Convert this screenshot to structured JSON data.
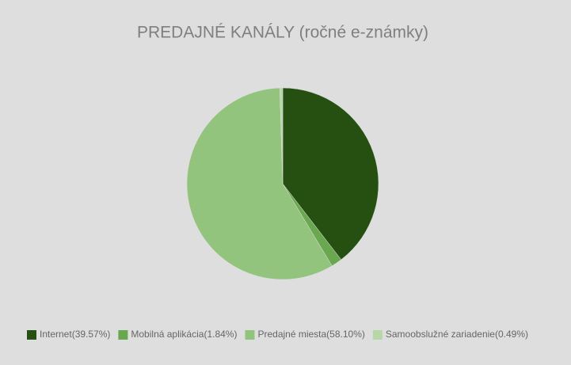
{
  "chart_data": {
    "type": "pie",
    "title": "PREDAJNÉ KANÁLY (ročné e-známky)",
    "categories": [
      "Internet(39.57%)",
      "Mobilná aplikácia(1.84%)",
      "Predajné miesta(58.10%)",
      "Samoobslužné zariadenie(0.49%)"
    ],
    "values": [
      39.57,
      1.84,
      58.1,
      0.49
    ],
    "colors": [
      "#264f12",
      "#6aa84f",
      "#93c47d",
      "#b6d7a8"
    ],
    "legend": "bottom"
  }
}
